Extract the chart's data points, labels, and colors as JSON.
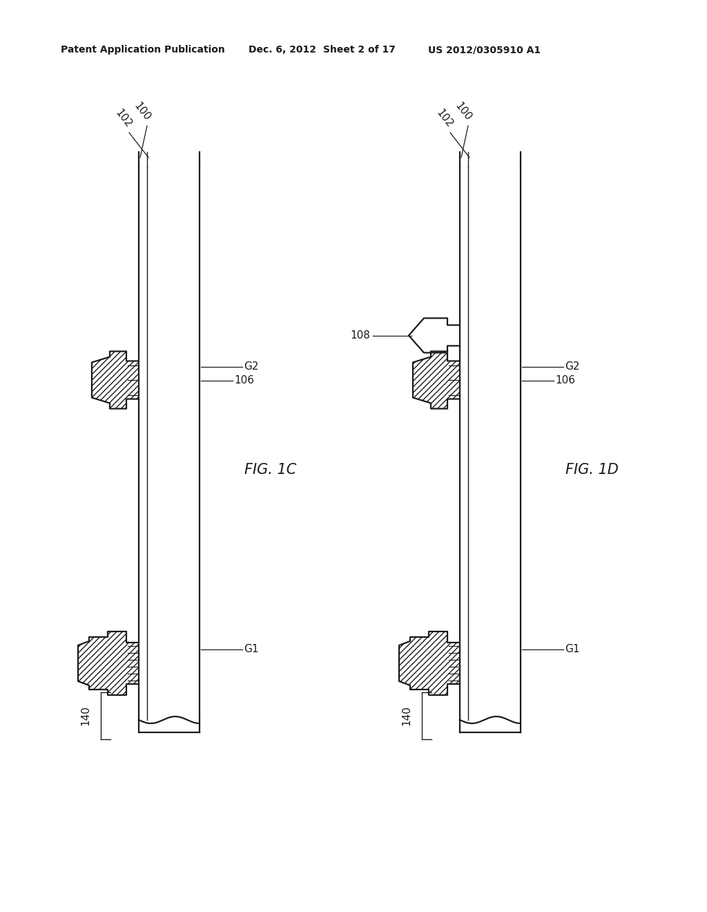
{
  "bg_color": "#ffffff",
  "lc": "#1a1a1a",
  "header_left": "Patent Application Publication",
  "header_date": "Dec. 6, 2012",
  "header_sheet": "Sheet 2 of 17",
  "header_patent": "US 2012/0305910 A1",
  "fig1c": "FIG. 1C",
  "fig1d": "FIG. 1D",
  "lw": 1.6,
  "lw_thin": 1.0,
  "fs_label": 11,
  "fs_header": 10,
  "fs_fig": 15
}
